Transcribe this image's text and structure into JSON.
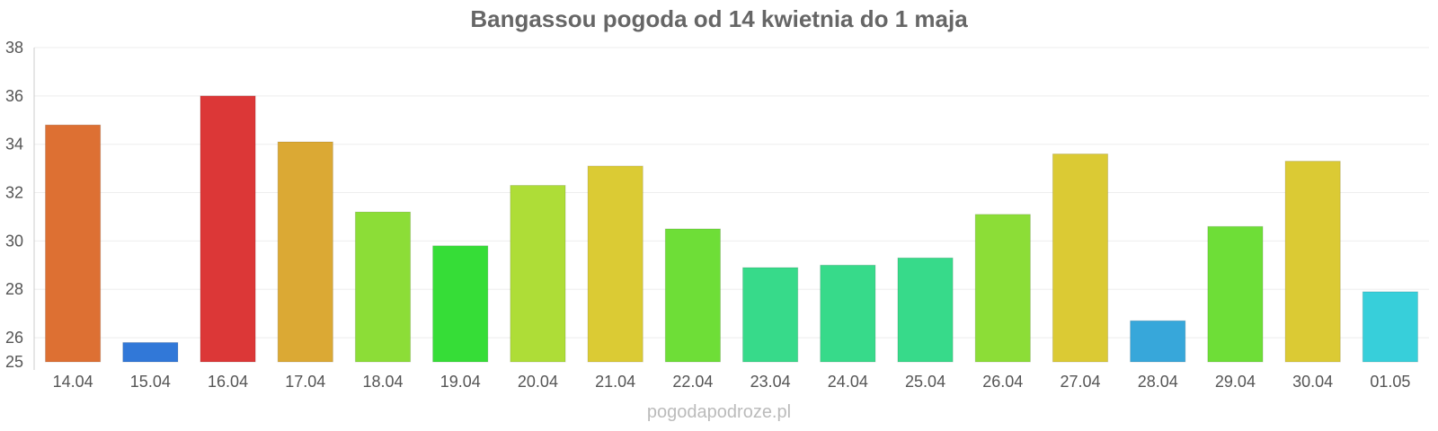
{
  "title": "Bangassou pogoda od 14 kwietnia do 1 maja",
  "watermark": "pogodapodroze.pl",
  "chart_data": {
    "type": "bar",
    "title": "Bangassou pogoda od 14 kwietnia do 1 maja",
    "xlabel": "",
    "ylabel": "",
    "categories": [
      "14.04",
      "15.04",
      "16.04",
      "17.04",
      "18.04",
      "19.04",
      "20.04",
      "21.04",
      "22.04",
      "23.04",
      "24.04",
      "25.04",
      "26.04",
      "27.04",
      "28.04",
      "29.04",
      "30.04",
      "01.05"
    ],
    "values": [
      34.8,
      25.8,
      36.0,
      34.1,
      31.2,
      29.8,
      32.3,
      33.1,
      30.5,
      28.9,
      29.0,
      29.3,
      31.1,
      33.6,
      26.7,
      30.6,
      33.3,
      27.9
    ],
    "colors": [
      "#dd7033",
      "#3178d8",
      "#dc3737",
      "#dba934",
      "#8cdd37",
      "#36dd37",
      "#aedd37",
      "#dbcb34",
      "#6ede37",
      "#37da8a",
      "#37da8a",
      "#37da8a",
      "#8cdd37",
      "#dbca34",
      "#37a7da",
      "#6ede37",
      "#dbca34",
      "#37cfda"
    ],
    "ylim": [
      25,
      38
    ],
    "yticks": [
      25,
      26,
      28,
      30,
      32,
      34,
      36,
      38
    ],
    "grid": true,
    "legend": "none"
  }
}
